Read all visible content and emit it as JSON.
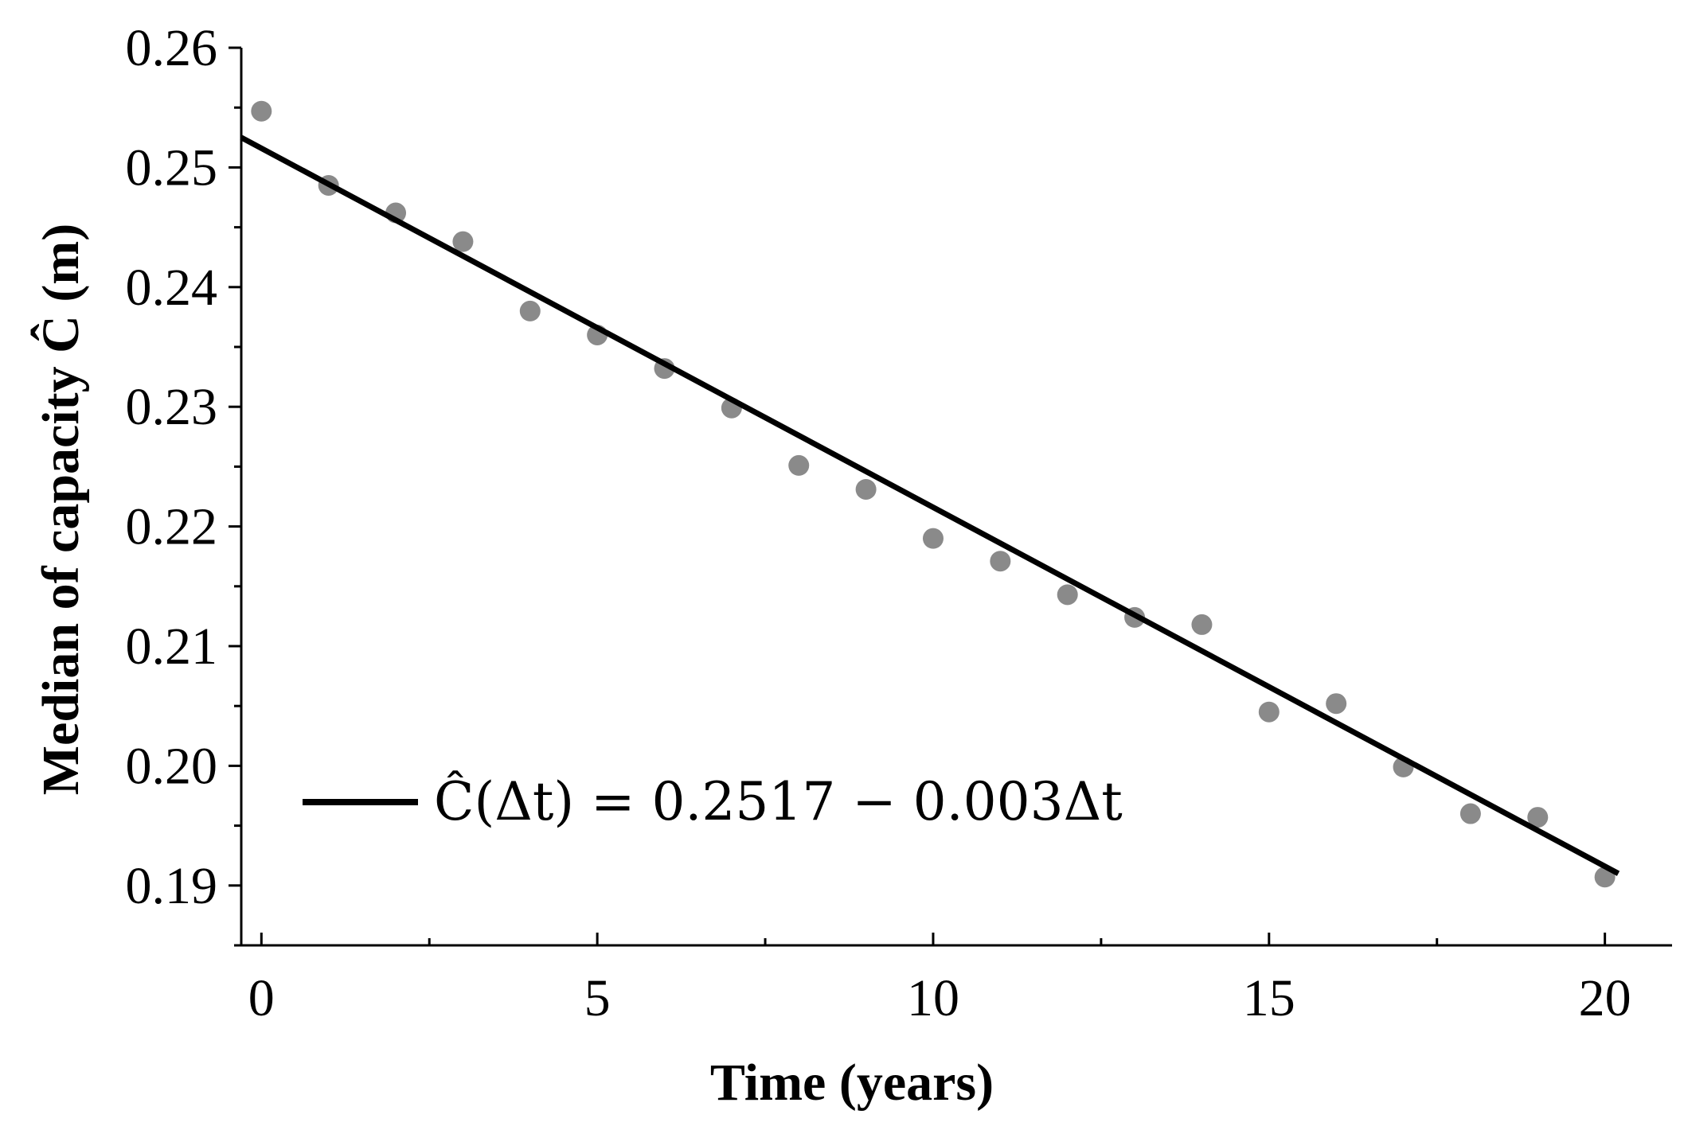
{
  "chart_data": {
    "type": "scatter",
    "xlabel": "Time (years)",
    "ylabel": "Median of capacity Ĉ (m)",
    "xlim": [
      -0.3,
      21
    ],
    "ylim": [
      0.185,
      0.26
    ],
    "x_ticks": [
      0,
      5,
      10,
      15,
      20
    ],
    "x_tick_labels": [
      "0",
      "5",
      "10",
      "15",
      "20"
    ],
    "y_ticks": [
      0.19,
      0.2,
      0.21,
      0.22,
      0.23,
      0.24,
      0.25,
      0.26
    ],
    "y_tick_labels": [
      "0.19",
      "0.20",
      "0.21",
      "0.22",
      "0.23",
      "0.24",
      "0.25",
      "0.26"
    ],
    "grid": false,
    "legend_position": "lower-left",
    "points": {
      "x": [
        0,
        1,
        2,
        3,
        4,
        5,
        6,
        7,
        8,
        9,
        10,
        11,
        12,
        13,
        14,
        15,
        16,
        17,
        18,
        19,
        20
      ],
      "y": [
        0.2547,
        0.2485,
        0.2462,
        0.2438,
        0.238,
        0.236,
        0.2332,
        0.2299,
        0.2251,
        0.2231,
        0.219,
        0.2171,
        0.2143,
        0.2124,
        0.2118,
        0.2045,
        0.2052,
        0.1999,
        0.196,
        0.1957,
        0.1907
      ],
      "color": "#8a8a8a"
    },
    "fit_line": {
      "label": "Ĉ(Δt) = 0.2517 − 0.003Δt",
      "x": [
        -0.3,
        20.2
      ],
      "y": [
        0.2525,
        0.191
      ],
      "color": "#000000"
    }
  }
}
